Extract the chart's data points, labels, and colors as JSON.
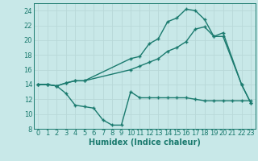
{
  "line1_x": [
    0,
    1,
    2,
    3,
    4,
    5,
    10,
    11,
    12,
    13,
    14,
    15,
    16,
    17,
    18,
    19,
    20,
    22,
    23
  ],
  "line1_y": [
    14,
    14,
    13.8,
    14.2,
    14.5,
    14.5,
    17.5,
    17.8,
    19.5,
    20.2,
    22.5,
    23,
    24.2,
    24,
    22.8,
    20.5,
    21,
    14,
    11.5
  ],
  "line2_x": [
    0,
    1,
    2,
    3,
    4,
    5,
    10,
    11,
    12,
    13,
    14,
    15,
    16,
    17,
    18,
    19,
    20,
    22,
    23
  ],
  "line2_y": [
    14,
    14,
    13.8,
    14.2,
    14.5,
    14.5,
    16,
    16.5,
    17,
    17.5,
    18.5,
    19,
    19.8,
    21.5,
    21.8,
    20.5,
    20.5,
    14,
    11.5
  ],
  "line3_x": [
    0,
    1,
    2,
    3,
    4,
    5,
    6,
    7,
    8,
    9,
    10,
    11,
    12,
    13,
    14,
    15,
    16,
    17,
    18,
    19,
    20,
    21,
    22,
    23
  ],
  "line3_y": [
    14,
    14,
    13.8,
    12.8,
    11.2,
    11.0,
    10.8,
    9.2,
    8.5,
    8.5,
    13,
    12.2,
    12.2,
    12.2,
    12.2,
    12.2,
    12.2,
    12.0,
    11.8,
    11.8,
    11.8,
    11.8,
    11.8,
    11.8
  ],
  "line_color": "#1a7a6e",
  "bg_color": "#c8e8e8",
  "grid_color": "#b8d8d8",
  "xlabel": "Humidex (Indice chaleur)",
  "xlim": [
    -0.5,
    23.5
  ],
  "ylim": [
    8,
    25
  ],
  "yticks": [
    8,
    10,
    12,
    14,
    16,
    18,
    20,
    22,
    24
  ],
  "xticks": [
    0,
    1,
    2,
    3,
    4,
    5,
    6,
    7,
    8,
    9,
    10,
    11,
    12,
    13,
    14,
    15,
    16,
    17,
    18,
    19,
    20,
    21,
    22,
    23
  ],
  "label_fontsize": 7,
  "tick_fontsize": 6
}
